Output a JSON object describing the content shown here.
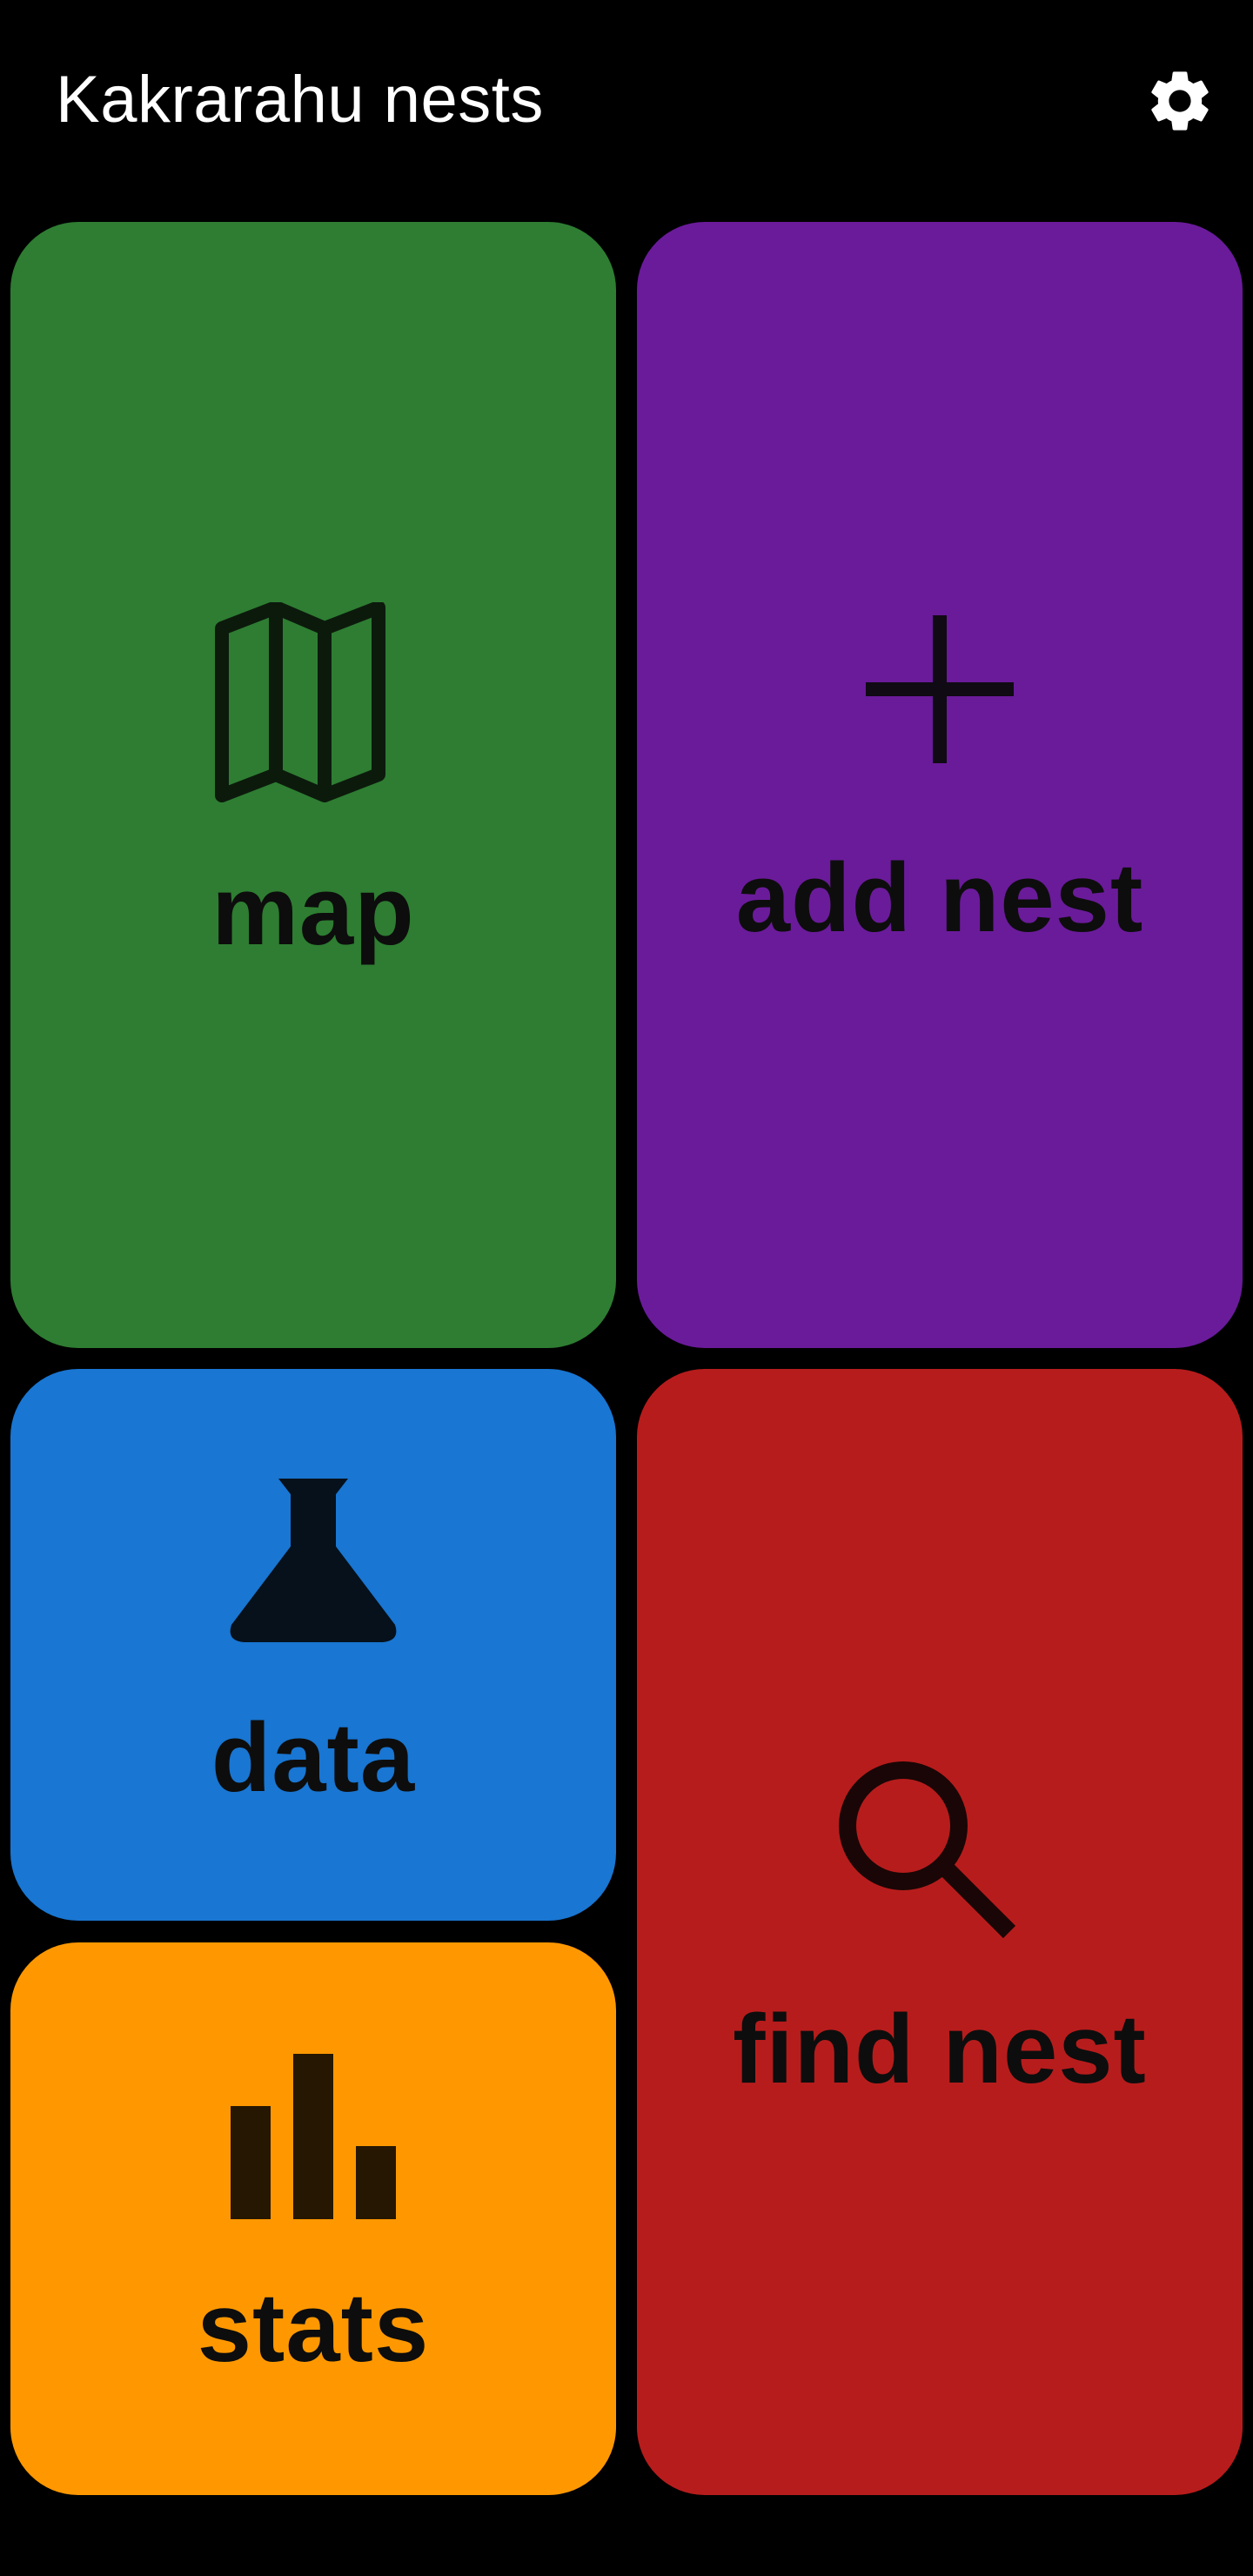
{
  "app": {
    "title": "Kakrarahu nests",
    "settings_icon": "gear-icon"
  },
  "tiles": {
    "map": {
      "label": "map",
      "color": "#2E7D32",
      "icon": "map-icon"
    },
    "add_nest": {
      "label": "add nest",
      "color": "#6A1B9A",
      "icon": "plus-icon"
    },
    "data": {
      "label": "data",
      "color": "#1976D2",
      "icon": "flask-icon"
    },
    "find_nest": {
      "label": "find nest",
      "color": "#B71C1C",
      "icon": "search-icon"
    },
    "stats": {
      "label": "stats",
      "color": "#FF9800",
      "icon": "bar-chart-icon"
    }
  }
}
